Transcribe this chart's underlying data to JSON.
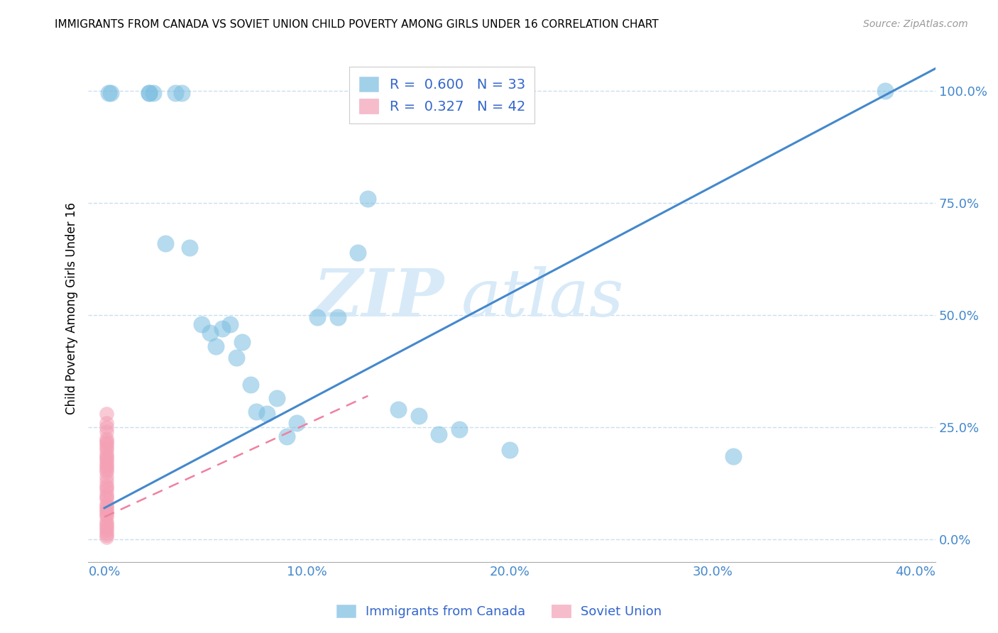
{
  "title": "IMMIGRANTS FROM CANADA VS SOVIET UNION CHILD POVERTY AMONG GIRLS UNDER 16 CORRELATION CHART",
  "source": "Source: ZipAtlas.com",
  "xlabel_ticks": [
    "0.0%",
    "",
    "10.0%",
    "",
    "20.0%",
    "",
    "30.0%",
    "",
    "40.0%"
  ],
  "xlabel_tick_vals": [
    0.0,
    0.05,
    0.1,
    0.15,
    0.2,
    0.25,
    0.3,
    0.35,
    0.4
  ],
  "ylabel_ticks": [
    "100.0%",
    "75.0%",
    "50.0%",
    "25.0%",
    "0.0%"
  ],
  "ylabel_tick_vals": [
    1.0,
    0.75,
    0.5,
    0.25,
    0.0
  ],
  "xlim": [
    -0.008,
    0.41
  ],
  "ylim": [
    -0.05,
    1.08
  ],
  "ylabel": "Child Poverty Among Girls Under 16",
  "canada_R": 0.6,
  "canada_N": 33,
  "soviet_R": 0.327,
  "soviet_N": 42,
  "canada_color": "#7abde0",
  "soviet_color": "#f4a0b5",
  "canada_line_color": "#4488cc",
  "soviet_line_color": "#f080a0",
  "watermark_zip": "ZIP",
  "watermark_atlas": "atlas",
  "canada_x": [
    0.002,
    0.003,
    0.022,
    0.022,
    0.024,
    0.03,
    0.035,
    0.038,
    0.042,
    0.048,
    0.052,
    0.055,
    0.058,
    0.062,
    0.065,
    0.068,
    0.072,
    0.075,
    0.08,
    0.085,
    0.09,
    0.095,
    0.105,
    0.115,
    0.125,
    0.13,
    0.145,
    0.155,
    0.165,
    0.175,
    0.2,
    0.31,
    0.385
  ],
  "canada_y": [
    0.995,
    0.995,
    0.995,
    0.995,
    0.995,
    0.66,
    0.995,
    0.995,
    0.65,
    0.48,
    0.46,
    0.43,
    0.47,
    0.48,
    0.405,
    0.44,
    0.345,
    0.285,
    0.28,
    0.315,
    0.23,
    0.26,
    0.495,
    0.495,
    0.64,
    0.76,
    0.29,
    0.275,
    0.235,
    0.245,
    0.2,
    0.185,
    1.0
  ],
  "soviet_x": [
    0.001,
    0.001,
    0.001,
    0.001,
    0.001,
    0.001,
    0.001,
    0.001,
    0.001,
    0.001,
    0.001,
    0.001,
    0.001,
    0.001,
    0.001,
    0.001,
    0.001,
    0.001,
    0.001,
    0.001,
    0.001,
    0.001,
    0.001,
    0.001,
    0.001,
    0.001,
    0.001,
    0.001,
    0.001,
    0.001,
    0.001,
    0.001,
    0.001,
    0.001,
    0.001,
    0.001,
    0.001,
    0.001,
    0.001,
    0.001,
    0.001,
    0.001
  ],
  "soviet_y": [
    0.005,
    0.01,
    0.015,
    0.02,
    0.025,
    0.03,
    0.035,
    0.04,
    0.05,
    0.055,
    0.06,
    0.065,
    0.07,
    0.075,
    0.08,
    0.09,
    0.095,
    0.1,
    0.11,
    0.115,
    0.12,
    0.13,
    0.14,
    0.15,
    0.155,
    0.16,
    0.165,
    0.17,
    0.175,
    0.18,
    0.185,
    0.19,
    0.2,
    0.205,
    0.21,
    0.215,
    0.22,
    0.225,
    0.24,
    0.25,
    0.26,
    0.28
  ],
  "canada_line_x": [
    0.0,
    0.41
  ],
  "canada_line_y": [
    0.07,
    1.05
  ],
  "soviet_line_x": [
    0.0,
    0.13
  ],
  "soviet_line_y": [
    0.05,
    0.32
  ],
  "legend_R_canada": "R =  0.600",
  "legend_N_canada": "N = 33",
  "legend_R_soviet": "R =  0.327",
  "legend_N_soviet": "N = 42",
  "canada_label": "Immigrants from Canada",
  "soviet_label": "Soviet Union"
}
